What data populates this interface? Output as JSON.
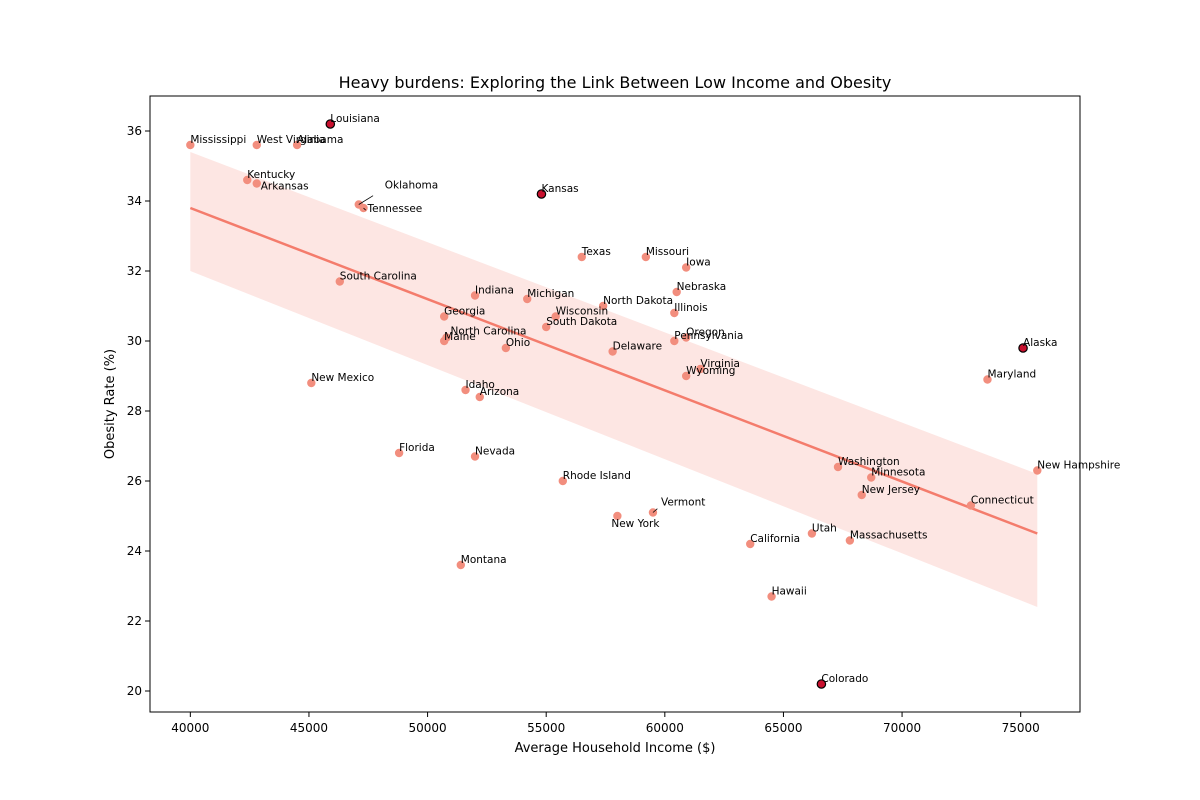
{
  "chart_data": {
    "type": "scatter",
    "title": "Heavy burdens: Exploring the Link Between Low Income and Obesity",
    "xlabel": "Average Household Income ($)",
    "ylabel": "Obesity Rate (%)",
    "xlim": [
      38300,
      77500
    ],
    "ylim": [
      19.4,
      37.0
    ],
    "xticks": [
      40000,
      45000,
      50000,
      55000,
      60000,
      65000,
      70000,
      75000
    ],
    "yticks": [
      20,
      22,
      24,
      26,
      28,
      30,
      32,
      34,
      36
    ],
    "grid": false,
    "point_color": "#f28e7e",
    "highlight_color": "#c8102e",
    "line_color": "#f47c6c",
    "band_color": "#fde6e3",
    "trend_line": {
      "x": [
        40000,
        75700
      ],
      "y": [
        33.8,
        24.5
      ]
    },
    "confidence_band": {
      "x": [
        40000,
        75700
      ],
      "upper": [
        35.4,
        26.2
      ],
      "lower": [
        32.0,
        22.4
      ]
    },
    "points": [
      {
        "label": "Mississippi",
        "x": 40000,
        "y": 35.6,
        "highlight": false
      },
      {
        "label": "West Virginia",
        "x": 42800,
        "y": 35.6,
        "highlight": false
      },
      {
        "label": "Alabama",
        "x": 44500,
        "y": 35.6,
        "highlight": false
      },
      {
        "label": "Louisiana",
        "x": 45900,
        "y": 36.2,
        "highlight": true
      },
      {
        "label": "Kentucky",
        "x": 42400,
        "y": 34.6,
        "highlight": false
      },
      {
        "label": "Arkansas",
        "x": 42800,
        "y": 34.5,
        "highlight": false
      },
      {
        "label": "Oklahoma",
        "x": 47100,
        "y": 33.9,
        "highlight": false
      },
      {
        "label": "Tennessee",
        "x": 47300,
        "y": 33.8,
        "highlight": false
      },
      {
        "label": "Kansas",
        "x": 54800,
        "y": 34.2,
        "highlight": true
      },
      {
        "label": "Texas",
        "x": 56500,
        "y": 32.4,
        "highlight": false
      },
      {
        "label": "Missouri",
        "x": 59200,
        "y": 32.4,
        "highlight": false
      },
      {
        "label": "Iowa",
        "x": 60900,
        "y": 32.1,
        "highlight": false
      },
      {
        "label": "South Carolina",
        "x": 46300,
        "y": 31.7,
        "highlight": false
      },
      {
        "label": "Indiana",
        "x": 52000,
        "y": 31.3,
        "highlight": false
      },
      {
        "label": "Michigan",
        "x": 54200,
        "y": 31.2,
        "highlight": false
      },
      {
        "label": "North Dakota",
        "x": 57400,
        "y": 31.0,
        "highlight": false
      },
      {
        "label": "Nebraska",
        "x": 60500,
        "y": 31.4,
        "highlight": false
      },
      {
        "label": "Illinois",
        "x": 60400,
        "y": 30.8,
        "highlight": false
      },
      {
        "label": "Wisconsin",
        "x": 55400,
        "y": 30.7,
        "highlight": false
      },
      {
        "label": "Georgia",
        "x": 50700,
        "y": 30.7,
        "highlight": false
      },
      {
        "label": "South Dakota",
        "x": 55000,
        "y": 30.4,
        "highlight": false
      },
      {
        "label": "North Carolina",
        "x": 50800,
        "y": 30.1,
        "highlight": false
      },
      {
        "label": "Maine",
        "x": 50700,
        "y": 30.0,
        "highlight": false
      },
      {
        "label": "Oregon",
        "x": 60900,
        "y": 30.1,
        "highlight": false
      },
      {
        "label": "Pennsylvania",
        "x": 60400,
        "y": 30.0,
        "highlight": false
      },
      {
        "label": "Ohio",
        "x": 53300,
        "y": 29.8,
        "highlight": false
      },
      {
        "label": "Delaware",
        "x": 57800,
        "y": 29.7,
        "highlight": false
      },
      {
        "label": "Alaska",
        "x": 75100,
        "y": 29.8,
        "highlight": true
      },
      {
        "label": "Virginia",
        "x": 61500,
        "y": 29.2,
        "highlight": false
      },
      {
        "label": "Wyoming",
        "x": 60900,
        "y": 29.0,
        "highlight": false
      },
      {
        "label": "Maryland",
        "x": 73600,
        "y": 28.9,
        "highlight": false
      },
      {
        "label": "New Mexico",
        "x": 45100,
        "y": 28.8,
        "highlight": false
      },
      {
        "label": "Idaho",
        "x": 51600,
        "y": 28.6,
        "highlight": false
      },
      {
        "label": "Arizona",
        "x": 52200,
        "y": 28.4,
        "highlight": false
      },
      {
        "label": "Florida",
        "x": 48800,
        "y": 26.8,
        "highlight": false
      },
      {
        "label": "Nevada",
        "x": 52000,
        "y": 26.7,
        "highlight": false
      },
      {
        "label": "Washington",
        "x": 67300,
        "y": 26.4,
        "highlight": false
      },
      {
        "label": "Minnesota",
        "x": 68700,
        "y": 26.1,
        "highlight": false
      },
      {
        "label": "New Hampshire",
        "x": 75700,
        "y": 26.3,
        "highlight": false
      },
      {
        "label": "Rhode Island",
        "x": 55700,
        "y": 26.0,
        "highlight": false
      },
      {
        "label": "New Jersey",
        "x": 68300,
        "y": 25.6,
        "highlight": false
      },
      {
        "label": "Connecticut",
        "x": 72900,
        "y": 25.3,
        "highlight": false
      },
      {
        "label": "Vermont",
        "x": 59500,
        "y": 25.1,
        "highlight": false
      },
      {
        "label": "New York",
        "x": 58000,
        "y": 25.0,
        "highlight": false
      },
      {
        "label": "Utah",
        "x": 66200,
        "y": 24.5,
        "highlight": false
      },
      {
        "label": "Massachusetts",
        "x": 67800,
        "y": 24.3,
        "highlight": false
      },
      {
        "label": "California",
        "x": 63600,
        "y": 24.2,
        "highlight": false
      },
      {
        "label": "Montana",
        "x": 51400,
        "y": 23.6,
        "highlight": false
      },
      {
        "label": "Hawaii",
        "x": 64500,
        "y": 22.7,
        "highlight": false
      },
      {
        "label": "Colorado",
        "x": 66600,
        "y": 20.2,
        "highlight": true
      }
    ]
  }
}
